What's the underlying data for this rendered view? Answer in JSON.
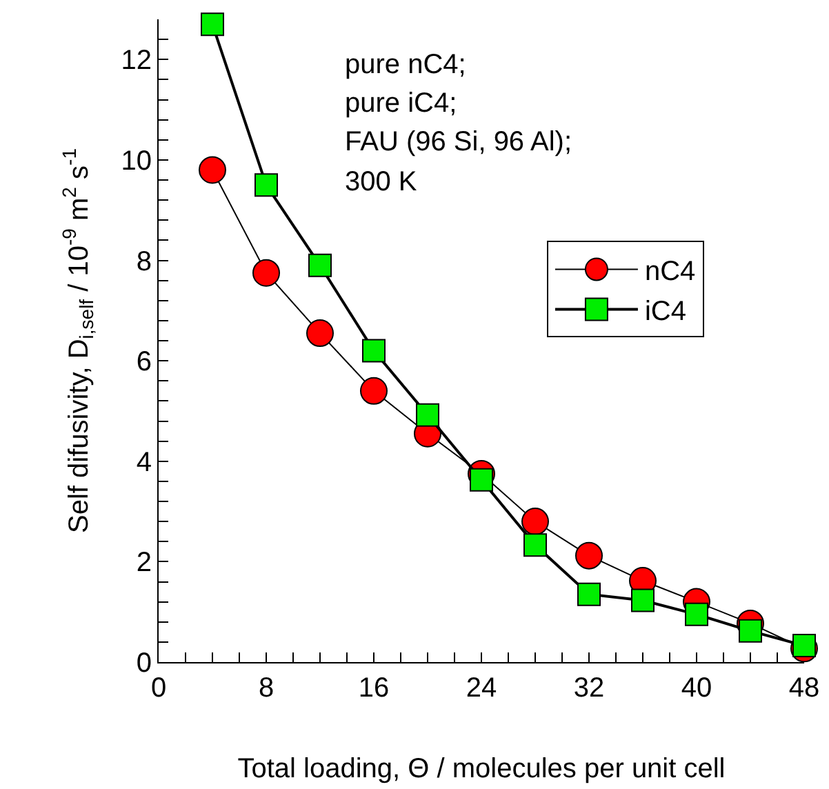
{
  "chart_data": {
    "type": "line",
    "xlabel": "Total loading, Θ / molecules per unit cell",
    "ylabel": "Self difusivity, D$_{i,self}$ / 10$^{-9}$ m$^{2}$ s$^{-1}$",
    "annotations": [
      "pure nC4;",
      "pure iC4;",
      "FAU (96 Si, 96 Al);",
      "300 K"
    ],
    "x": [
      4,
      8,
      12,
      16,
      20,
      24,
      28,
      32,
      36,
      40,
      44,
      48
    ],
    "series": [
      {
        "name": "nC4",
        "color": "#ff0000",
        "marker": "circle",
        "values": [
          9.8,
          7.75,
          6.55,
          5.4,
          4.55,
          3.75,
          2.8,
          2.12,
          1.62,
          1.2,
          0.77,
          0.27
        ]
      },
      {
        "name": "iC4",
        "color": "#00ee00",
        "marker": "square",
        "values": [
          12.7,
          9.5,
          7.9,
          6.2,
          4.92,
          3.63,
          2.33,
          1.35,
          1.23,
          0.95,
          0.62,
          0.33
        ]
      }
    ],
    "xlim": [
      0,
      48
    ],
    "xticks": [
      0,
      {
        "value": 2,
        "label": null
      },
      {
        "value": 4,
        "label": null
      },
      {
        "value": 6,
        "label": null
      },
      8,
      {
        "value": 10,
        "label": null
      },
      {
        "value": 12,
        "label": null
      },
      {
        "value": 14,
        "label": null
      },
      16,
      {
        "value": 18,
        "label": null
      },
      {
        "value": 20,
        "label": null
      },
      {
        "value": 22,
        "label": null
      },
      24,
      {
        "value": 26,
        "label": null
      },
      {
        "value": 28,
        "label": null
      },
      {
        "value": 30,
        "label": null
      },
      32,
      {
        "value": 34,
        "label": null
      },
      {
        "value": 36,
        "label": null
      },
      {
        "value": 38,
        "label": null
      },
      40,
      {
        "value": 42,
        "label": null
      },
      {
        "value": 44,
        "label": null
      },
      {
        "value": 46,
        "label": null
      },
      48
    ],
    "ylim": [
      0,
      12.8
    ],
    "yticks": [
      0,
      {
        "value": 0.4,
        "label": null
      },
      {
        "value": 0.8,
        "label": null
      },
      {
        "value": 1.2,
        "label": null
      },
      {
        "value": 1.6,
        "label": null
      },
      2,
      {
        "value": 2.4,
        "label": null
      },
      {
        "value": 2.8,
        "label": null
      },
      {
        "value": 3.2,
        "label": null
      },
      {
        "value": 3.6,
        "label": null
      },
      4,
      {
        "value": 4.4,
        "label": null
      },
      {
        "value": 4.8,
        "label": null
      },
      {
        "value": 5.2,
        "label": null
      },
      {
        "value": 5.6,
        "label": null
      },
      6,
      {
        "value": 6.4,
        "label": null
      },
      {
        "value": 6.8,
        "label": null
      },
      {
        "value": 7.2,
        "label": null
      },
      {
        "value": 7.6,
        "label": null
      },
      8,
      {
        "value": 8.4,
        "label": null
      },
      {
        "value": 8.8,
        "label": null
      },
      {
        "value": 9.2,
        "label": null
      },
      {
        "value": 9.6,
        "label": null
      },
      10,
      {
        "value": 10.4,
        "label": null
      },
      {
        "value": 10.8,
        "label": null
      },
      {
        "value": 11.2,
        "label": null
      },
      {
        "value": 11.6,
        "label": null
      },
      12,
      {
        "value": 12.4,
        "label": null
      }
    ],
    "grid": false,
    "legend": "right",
    "line_style": "solid"
  }
}
